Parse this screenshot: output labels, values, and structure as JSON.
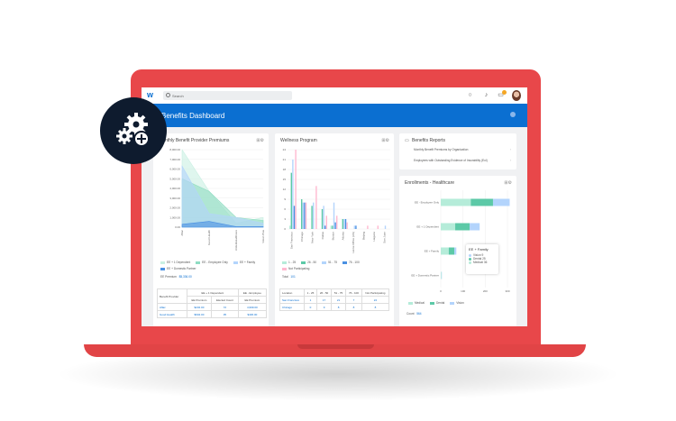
{
  "topbar": {
    "search_placeholder": "Search",
    "icons": [
      "chat-icon",
      "bell-icon",
      "inbox-icon",
      "avatar"
    ],
    "inbox_badge": "3"
  },
  "header": {
    "title": "Benefits Dashboard"
  },
  "colors": {
    "brand": "#0b6fd1",
    "laptop": "#e8474a",
    "mint": "#b5ecd9",
    "teal": "#5cc9a7",
    "lightblue": "#b3d4fc",
    "blue": "#4a90e2",
    "pink": "#ffb9d0"
  },
  "premiums": {
    "title": "Monthly Benefit Provider Premiums",
    "ee_premium_label": "EE Premium",
    "ee_premium_value": "$5,336.00",
    "table": {
      "group_headers": [
        "EE + 1 Dependent",
        "EE - Employee"
      ],
      "headers": [
        "Benefit Provider",
        "EE Premium",
        "Elected Count",
        "EE Premium"
      ],
      "rows": [
        [
          "Aflac",
          "$232.00",
          "72",
          "4,999.00"
        ],
        [
          "Good Health",
          "$604.00",
          "35",
          "$436.00"
        ]
      ]
    }
  },
  "wellness": {
    "title": "Wellness Program",
    "total_label": "Total",
    "total_value": "101",
    "table": {
      "headers": [
        "Location",
        "1 - 25",
        "26 - 50",
        "51 - 75",
        "76 - 100",
        "Not Participating"
      ],
      "rows": [
        [
          "San Francisco",
          "1",
          "17",
          "21",
          "7",
          "24"
        ],
        [
          "Chicago",
          "0",
          "9",
          "8",
          "8",
          "8"
        ]
      ]
    }
  },
  "reports": {
    "title": "Benefits Reports",
    "items": [
      "Monthly Benefit Premiums by Organization",
      "Employees with Outstanding Evidence of Insurability (EoI)"
    ]
  },
  "enrollments": {
    "title": "Enrollments - Healthcare",
    "count_label": "Count",
    "count_value": "564",
    "tooltip": {
      "title": "EE + Family",
      "rows": [
        {
          "label": "Vision",
          "value": "9"
        },
        {
          "label": "Dental",
          "value": "25"
        },
        {
          "label": "Medical",
          "value": "36"
        }
      ]
    }
  },
  "chart_data": [
    {
      "type": "area",
      "title": "Monthly Benefit Provider Premiums",
      "categories": [
        "Aflac",
        "Good Health",
        "UnitedHealthcare",
        "Vision Plus"
      ],
      "ylim": [
        0,
        8000
      ],
      "yticks": [
        "0.00",
        "1,000.00",
        "2,000.00",
        "3,000.00",
        "4,000.00",
        "5,000.00",
        "6,000.00",
        "7,000.00",
        "8,000.00"
      ],
      "series": [
        {
          "name": "EE + 1 Dependent",
          "color": "#c9f0e2",
          "values": [
            8000,
            3700,
            400,
            1000
          ]
        },
        {
          "name": "EE - Employee Only",
          "color": "#8fdcc2",
          "values": [
            5000,
            3700,
            1000,
            700
          ]
        },
        {
          "name": "EE + Family",
          "color": "#b3d4fc",
          "values": [
            6300,
            1400,
            1000,
            400
          ]
        },
        {
          "name": "EE + Domestic Partner",
          "color": "#4a90e2",
          "values": [
            300,
            600,
            50,
            50
          ]
        }
      ],
      "legend": "bottom"
    },
    {
      "type": "bar",
      "title": "Wellness Program",
      "categories": [
        "San Francisco",
        "Chicago",
        "New York",
        "Dallas",
        "Boston",
        "Atlanta",
        "Home Office (US)",
        "Beijing",
        "Hagane",
        "San Juan"
      ],
      "ylim": [
        0,
        24
      ],
      "yticks": [
        "0",
        "3",
        "6",
        "9",
        "12",
        "15",
        "18",
        "21",
        "24"
      ],
      "series": [
        {
          "name": "1 - 25",
          "color": "#b5ecd9",
          "values": [
            1,
            0,
            0,
            0,
            1,
            0,
            0,
            0,
            0,
            0
          ]
        },
        {
          "name": "26 - 50",
          "color": "#5cc9a7",
          "values": [
            17,
            9,
            7,
            6,
            1,
            3,
            0,
            0,
            0,
            0
          ]
        },
        {
          "name": "51 - 75",
          "color": "#b3d4fc",
          "values": [
            21,
            8,
            8,
            7,
            8,
            3,
            1,
            0,
            0,
            1
          ]
        },
        {
          "name": "76 - 100",
          "color": "#4a90e2",
          "values": [
            7,
            8,
            0,
            1,
            2,
            3,
            1,
            0,
            0,
            0
          ]
        },
        {
          "name": "Not Participating",
          "color": "#ffb9d0",
          "values": [
            24,
            8,
            13,
            4,
            4,
            2,
            0,
            1,
            1,
            0
          ]
        }
      ],
      "legend": "bottom"
    },
    {
      "type": "bar",
      "orientation": "horizontal",
      "stacked": true,
      "title": "Enrollments - Healthcare",
      "categories": [
        "EE - Employee Only",
        "EE + 1 Dependent",
        "EE + Family",
        "EE + Domestic Partner"
      ],
      "xlim": [
        0,
        300
      ],
      "xticks": [
        "0",
        "100",
        "200",
        "300"
      ],
      "series": [
        {
          "name": "Medical",
          "color": "#b5ecd9",
          "values": [
            135,
            65,
            36,
            3
          ]
        },
        {
          "name": "Dental",
          "color": "#5cc9a7",
          "values": [
            100,
            65,
            25,
            0
          ]
        },
        {
          "name": "Vision",
          "color": "#b3d4fc",
          "values": [
            75,
            45,
            9,
            2
          ]
        }
      ],
      "legend": "bottom"
    }
  ]
}
